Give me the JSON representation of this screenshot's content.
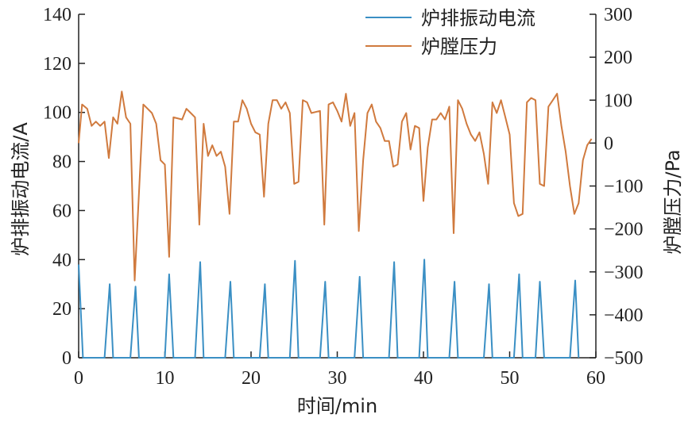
{
  "chart_data": {
    "type": "line",
    "xlabel": "时间/min",
    "ylabel_left": "炉排振动电流/A",
    "ylabel_right": "炉膛压力/Pa",
    "xlim": [
      0,
      60
    ],
    "ylim_left": [
      0,
      140
    ],
    "ylim_right": [
      -500,
      300
    ],
    "x_ticks": [
      "0",
      "10",
      "20",
      "30",
      "40",
      "50",
      "60"
    ],
    "y_left_ticks": [
      "0",
      "20",
      "40",
      "60",
      "80",
      "100",
      "120",
      "140"
    ],
    "y_right_ticks": [
      "−500",
      "−400",
      "−300",
      "−200",
      "−100",
      "0",
      "100",
      "200",
      "300"
    ],
    "grid": false,
    "legend_position": "top-right",
    "series": [
      {
        "name": "炉排振动电流",
        "axis": "left",
        "color": "#3a8fc4",
        "points": [
          [
            0,
            38
          ],
          [
            0.5,
            0
          ],
          [
            3,
            0
          ],
          [
            3.6,
            30
          ],
          [
            4,
            0
          ],
          [
            6,
            0
          ],
          [
            6.6,
            29
          ],
          [
            7,
            0
          ],
          [
            10,
            0
          ],
          [
            10.5,
            34
          ],
          [
            11,
            0
          ],
          [
            13.5,
            0
          ],
          [
            14.1,
            39
          ],
          [
            14.5,
            0
          ],
          [
            17,
            0
          ],
          [
            17.6,
            31
          ],
          [
            18,
            0
          ],
          [
            21,
            0
          ],
          [
            21.6,
            30
          ],
          [
            22,
            0
          ],
          [
            24.5,
            0
          ],
          [
            25.1,
            39.5
          ],
          [
            25.5,
            0
          ],
          [
            28,
            0
          ],
          [
            28.6,
            31
          ],
          [
            29,
            0
          ],
          [
            32,
            0
          ],
          [
            32.6,
            33
          ],
          [
            33,
            0
          ],
          [
            36,
            0
          ],
          [
            36.6,
            39
          ],
          [
            37,
            0
          ],
          [
            39.5,
            0
          ],
          [
            40.1,
            40
          ],
          [
            40.5,
            0
          ],
          [
            43,
            0
          ],
          [
            43.6,
            31
          ],
          [
            44,
            0
          ],
          [
            47,
            0
          ],
          [
            47.6,
            30
          ],
          [
            48,
            0
          ],
          [
            50.5,
            0
          ],
          [
            51.1,
            34
          ],
          [
            51.5,
            0
          ],
          [
            53,
            0
          ],
          [
            53.5,
            31
          ],
          [
            54,
            0
          ],
          [
            57,
            0
          ],
          [
            57.6,
            31.5
          ],
          [
            58,
            0
          ]
        ]
      },
      {
        "name": "炉膛压力",
        "axis": "right",
        "color": "#d07a3e",
        "points": [
          [
            0,
            0
          ],
          [
            0.4,
            90
          ],
          [
            1,
            80
          ],
          [
            1.5,
            40
          ],
          [
            2,
            50
          ],
          [
            2.5,
            40
          ],
          [
            3,
            50
          ],
          [
            3.5,
            -35
          ],
          [
            4,
            60
          ],
          [
            4.5,
            45
          ],
          [
            5,
            120
          ],
          [
            5.5,
            60
          ],
          [
            6,
            45
          ],
          [
            6.5,
            -320
          ],
          [
            7.5,
            90
          ],
          [
            8,
            80
          ],
          [
            8.5,
            70
          ],
          [
            9,
            45
          ],
          [
            9.5,
            -40
          ],
          [
            10,
            -50
          ],
          [
            10.5,
            -265
          ],
          [
            11,
            60
          ],
          [
            12,
            55
          ],
          [
            12.5,
            80
          ],
          [
            13,
            70
          ],
          [
            13.5,
            60
          ],
          [
            14,
            -190
          ],
          [
            14.5,
            45
          ],
          [
            15,
            -30
          ],
          [
            15.5,
            -5
          ],
          [
            16,
            -30
          ],
          [
            16.5,
            -20
          ],
          [
            17,
            -55
          ],
          [
            17.5,
            -165
          ],
          [
            18,
            50
          ],
          [
            18.5,
            50
          ],
          [
            19,
            100
          ],
          [
            19.5,
            80
          ],
          [
            20,
            45
          ],
          [
            20.5,
            25
          ],
          [
            21,
            20
          ],
          [
            21.5,
            -125
          ],
          [
            22,
            45
          ],
          [
            22.5,
            100
          ],
          [
            23,
            100
          ],
          [
            23.5,
            80
          ],
          [
            24,
            95
          ],
          [
            24.5,
            70
          ],
          [
            25,
            -95
          ],
          [
            25.5,
            -90
          ],
          [
            26,
            100
          ],
          [
            26.5,
            95
          ],
          [
            27,
            70
          ],
          [
            28,
            75
          ],
          [
            28.5,
            -190
          ],
          [
            29,
            90
          ],
          [
            29.5,
            95
          ],
          [
            30,
            75
          ],
          [
            30.5,
            50
          ],
          [
            31,
            115
          ],
          [
            31.5,
            40
          ],
          [
            32,
            70
          ],
          [
            32.5,
            -205
          ],
          [
            33,
            -40
          ],
          [
            33.5,
            70
          ],
          [
            34,
            90
          ],
          [
            34.5,
            50
          ],
          [
            35,
            35
          ],
          [
            35.5,
            5
          ],
          [
            36,
            5
          ],
          [
            36.5,
            -55
          ],
          [
            37,
            -50
          ],
          [
            37.5,
            50
          ],
          [
            38,
            70
          ],
          [
            38.5,
            -15
          ],
          [
            39,
            40
          ],
          [
            39.5,
            35
          ],
          [
            40,
            -135
          ],
          [
            40.5,
            -10
          ],
          [
            41,
            55
          ],
          [
            41.5,
            55
          ],
          [
            42,
            70
          ],
          [
            42.5,
            55
          ],
          [
            43,
            85
          ],
          [
            43.5,
            -210
          ],
          [
            44,
            100
          ],
          [
            44.5,
            80
          ],
          [
            45,
            45
          ],
          [
            45.5,
            20
          ],
          [
            46,
            5
          ],
          [
            46.5,
            25
          ],
          [
            47,
            -25
          ],
          [
            47.5,
            -95
          ],
          [
            48,
            95
          ],
          [
            48.5,
            70
          ],
          [
            49,
            100
          ],
          [
            49.5,
            60
          ],
          [
            50,
            20
          ],
          [
            50.5,
            -140
          ],
          [
            51,
            -170
          ],
          [
            51.5,
            -165
          ],
          [
            52,
            95
          ],
          [
            52.5,
            105
          ],
          [
            53,
            100
          ],
          [
            53.5,
            -95
          ],
          [
            54,
            -100
          ],
          [
            54.5,
            85
          ],
          [
            55,
            100
          ],
          [
            55.5,
            115
          ],
          [
            56,
            40
          ],
          [
            56.5,
            -20
          ],
          [
            57,
            -100
          ],
          [
            57.5,
            -165
          ],
          [
            58,
            -140
          ],
          [
            58.5,
            -40
          ],
          [
            59,
            -5
          ],
          [
            59.5,
            10
          ]
        ]
      }
    ]
  }
}
